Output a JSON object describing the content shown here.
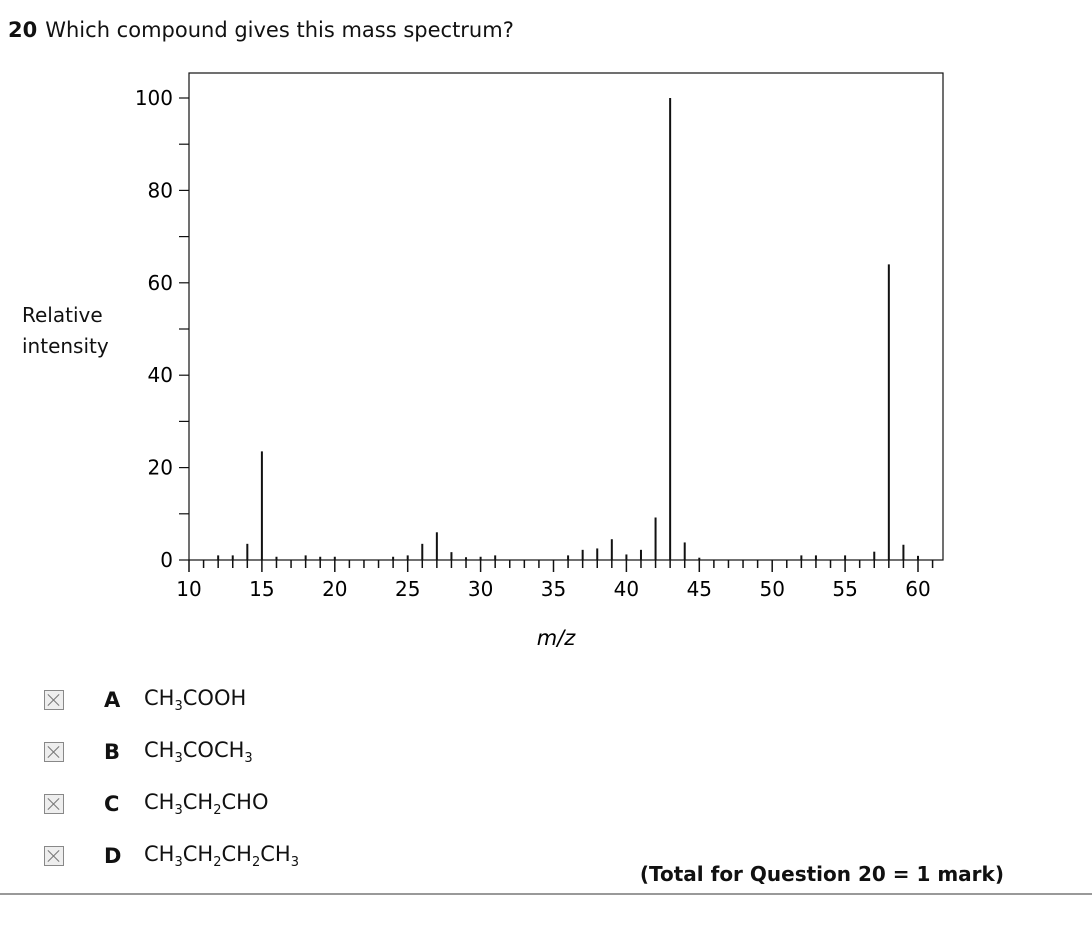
{
  "question": {
    "number": "20",
    "text": "Which compound gives this mass spectrum?"
  },
  "chart_data": {
    "type": "bar",
    "title": "",
    "xlabel": "m/z",
    "ylabel": "Relative intensity",
    "xlim": [
      10,
      61.5
    ],
    "ylim": [
      0,
      105
    ],
    "xticks": [
      "10",
      "15",
      "20",
      "25",
      "30",
      "35",
      "40",
      "45",
      "50",
      "55",
      "60"
    ],
    "yticks": [
      "0",
      "20",
      "40",
      "60",
      "80",
      "100"
    ],
    "x": [
      12,
      13,
      14,
      15,
      16,
      18,
      19,
      20,
      24,
      25,
      26,
      27,
      28,
      29,
      30,
      31,
      36,
      37,
      38,
      39,
      40,
      41,
      42,
      43,
      44,
      45,
      52,
      53,
      55,
      57,
      58,
      59,
      60
    ],
    "values": [
      1,
      1,
      3.5,
      23.5,
      0.7,
      1,
      0.7,
      0.7,
      0.7,
      1,
      3.5,
      6,
      1.7,
      0.6,
      0.7,
      1,
      1,
      2.2,
      2.5,
      4.5,
      1.2,
      2.2,
      9.2,
      100,
      3.8,
      0.5,
      1,
      1,
      1,
      1.8,
      64,
      3.3,
      0.9
    ]
  },
  "ylabel_lines": [
    "Relative",
    "intensity"
  ],
  "options": [
    {
      "letter": "A",
      "formula": [
        [
          "CH",
          "3"
        ],
        [
          "COOH",
          ""
        ]
      ]
    },
    {
      "letter": "B",
      "formula": [
        [
          "CH",
          "3"
        ],
        [
          "COCH",
          "3"
        ]
      ]
    },
    {
      "letter": "C",
      "formula": [
        [
          "CH",
          "3"
        ],
        [
          "CH",
          "2"
        ],
        [
          "CHO",
          ""
        ]
      ]
    },
    {
      "letter": "D",
      "formula": [
        [
          "CH",
          "3"
        ],
        [
          "CH",
          "2"
        ],
        [
          "CH",
          "2"
        ],
        [
          "CH",
          "3"
        ]
      ]
    }
  ],
  "total": "(Total for Question 20 = 1 mark)"
}
